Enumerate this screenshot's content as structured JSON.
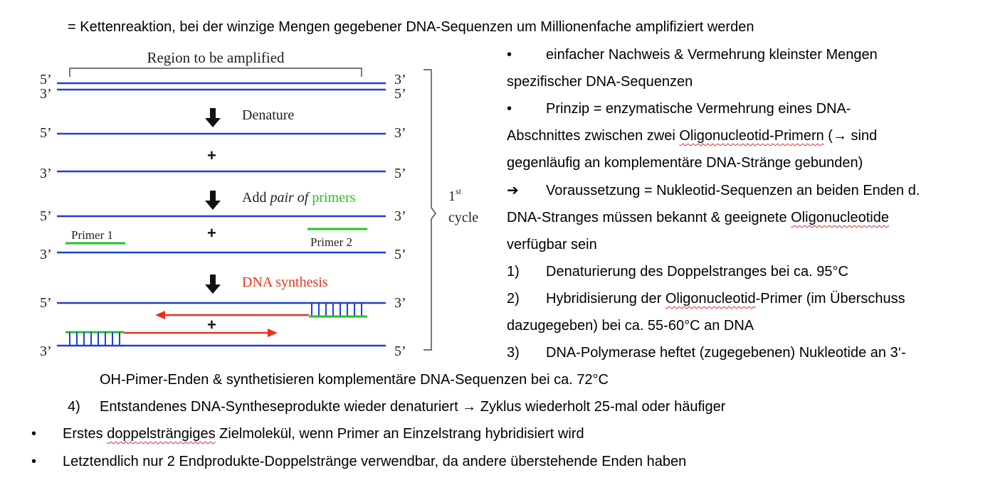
{
  "intro": "= Kettenreaktion, bei der winzige Mengen gegebener DNA-Sequenzen um Millionenfache amplifiziert werden",
  "diagram": {
    "region_label": "Region to be amplified",
    "five_prime": "5’",
    "three_prime": "3’",
    "plus": "+",
    "denature": "Denature",
    "add_prefix": "Add ",
    "add_italic": "pair of",
    "add_primers": "primers",
    "primer1": "Primer 1",
    "primer2": "Primer 2",
    "dna_synthesis": "DNA synthesis",
    "cycle_num": "1",
    "cycle_sup": "st",
    "cycle_word": "cycle",
    "colors": {
      "strand": "#1f3fd6",
      "primer": "#22c422",
      "synthesis": "#e8321e",
      "arrow": "#111111"
    }
  },
  "right": {
    "b1_l1": "einfacher Nachweis & Vermehrung kleinster Mengen",
    "b1_l2": "spezifischer DNA-Sequenzen",
    "b2_l1": "Prinzip = enzymatische Vermehrung eines DNA-",
    "b2_l2a": "Abschnittes zwischen zwei ",
    "b2_l2b": "Oligonucleotid-Primern",
    "b2_l2c": " (→ sind",
    "b2_l3": "gegenläufig an komplementäre DNA-Stränge gebunden)",
    "b3_l1": "Voraussetzung = Nukleotid-Sequenzen an beiden Enden d.",
    "b3_l2a": "DNA-Stranges müssen bekannt & geeignete ",
    "b3_l2b": "Oligonucleotide",
    "b3_l3": "verfügbar sein",
    "s1": "Denaturierung des Doppelstranges bei ca. 95°C",
    "s2a": "Hybridisierung der ",
    "s2b": "Oligonucleotid",
    "s2c": "-Primer (im Überschuss",
    "s2_l2": "dazugegeben) bei ca. 55-60°C an DNA",
    "s3": "DNA-Polymerase heftet (zugegebenen) Nukleotide an 3‘-",
    "n1": "1)",
    "n2": "2)",
    "n3": "3)",
    "n4": "4)",
    "bullet": "•",
    "arrow_bullet": "➔"
  },
  "bottom": {
    "s3_cont": "OH-Pimer-Enden & synthetisieren komplementäre DNA-Sequenzen bei ca. 72°C",
    "s4": "Entstandenes DNA-Syntheseprodukte wieder denaturiert → Zyklus wiederholt 25-mal oder häufiger",
    "b1a": "Erstes ",
    "b1b": "doppelsträngiges",
    "b1c": " Zielmolekül, wenn Primer an Einzelstrang hybridisiert wird",
    "b2": "Letztendlich nur 2 Endprodukte-Doppelstränge verwendbar, da andere überstehende Enden haben"
  }
}
